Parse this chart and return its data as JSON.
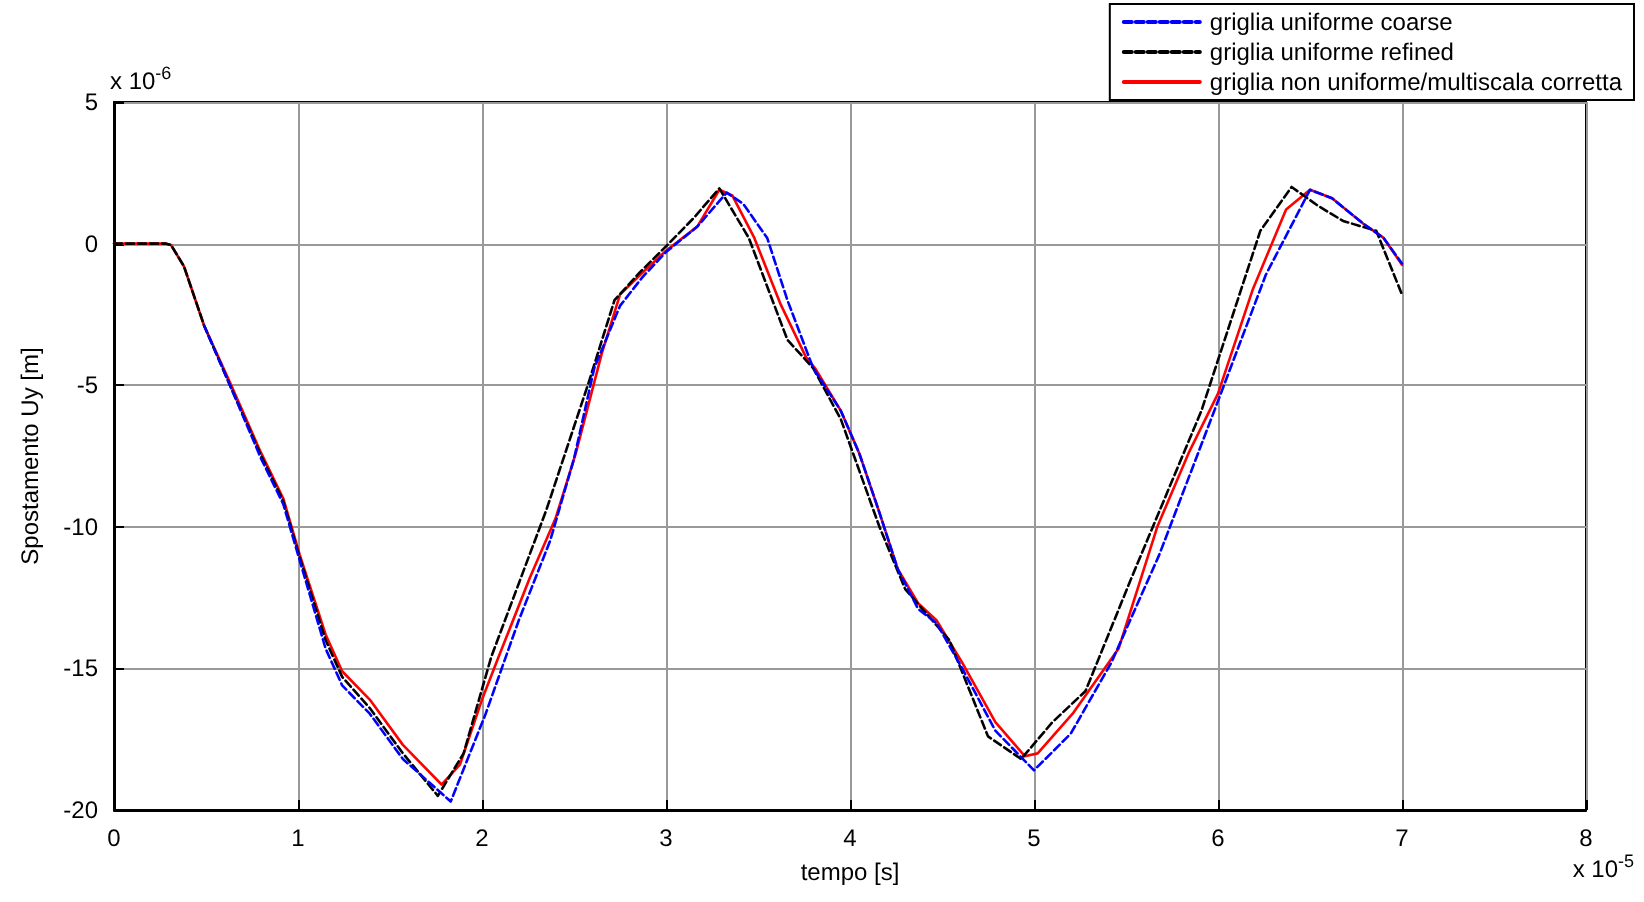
{
  "chart_data": {
    "type": "line",
    "xlabel": "tempo [s]",
    "ylabel": "Spostamento Uy [m]",
    "annotations": [
      "x 10$^{-6}$",
      "x 10$^{-5}$"
    ],
    "xlim": [
      0,
      8
    ],
    "xticks": [
      0,
      1,
      2,
      3,
      4,
      5,
      6,
      7,
      8
    ],
    "ylim": [
      -20,
      5
    ],
    "yticks": [
      -20,
      -15,
      -10,
      -5,
      0,
      5
    ],
    "grid": true,
    "legend": "top right",
    "marker": "none",
    "series": [
      {
        "name": "griglia uniforme coarse",
        "color": "#0000ff",
        "line_style": "dashed",
        "x": [
          0.49,
          0.63,
          0.8,
          0.92,
          1.01,
          1.15,
          1.24,
          1.39,
          1.57,
          1.83,
          2.02,
          2.2,
          2.37,
          2.5,
          2.61,
          2.75,
          2.87,
          3.0,
          3.17,
          3.33,
          3.42,
          3.55,
          3.66,
          3.8,
          3.95,
          4.05,
          4.16,
          4.26,
          4.37,
          4.47,
          4.61,
          4.79,
          5.0,
          5.2,
          5.42,
          5.68,
          5.98,
          6.26,
          6.5,
          6.62,
          6.79,
          6.9,
          7.0
        ],
        "values": [
          -2.9,
          -5.0,
          -7.6,
          -9.2,
          -11.2,
          -14.3,
          -15.6,
          -16.6,
          -18.2,
          -19.7,
          -16.6,
          -13.3,
          -10.5,
          -7.6,
          -4.4,
          -2.2,
          -1.2,
          -0.3,
          0.6,
          1.8,
          1.4,
          0.2,
          -2.0,
          -4.4,
          -5.9,
          -7.4,
          -9.5,
          -11.5,
          -12.9,
          -13.4,
          -15.0,
          -17.2,
          -18.6,
          -17.3,
          -14.8,
          -11.0,
          -5.9,
          -1.1,
          1.9,
          1.6,
          0.7,
          0.2,
          -0.7
        ]
      },
      {
        "name": "griglia uniforme refined",
        "color": "#000000",
        "line_style": "dashed",
        "x": [
          0,
          0.28,
          0.31,
          0.38,
          0.49,
          0.63,
          0.8,
          0.92,
          1.01,
          1.15,
          1.24,
          1.39,
          1.57,
          1.76,
          1.9,
          2.05,
          2.2,
          2.35,
          2.58,
          2.72,
          2.86,
          3.0,
          3.15,
          3.29,
          3.45,
          3.66,
          3.8,
          3.95,
          4.16,
          4.3,
          4.54,
          4.75,
          4.93,
          5.1,
          5.28,
          5.53,
          5.91,
          6.23,
          6.4,
          6.54,
          6.68,
          6.86,
          7.0
        ],
        "values": [
          0,
          0,
          -0.05,
          -0.8,
          -2.9,
          -5.0,
          -7.5,
          -9.1,
          -11.1,
          -14.0,
          -15.3,
          -16.4,
          -18.0,
          -19.5,
          -18.0,
          -14.6,
          -12.0,
          -9.4,
          -4.9,
          -2.0,
          -1.0,
          -0.1,
          0.9,
          1.95,
          0.2,
          -3.4,
          -4.4,
          -6.2,
          -10.0,
          -12.2,
          -14.0,
          -17.4,
          -18.2,
          -16.9,
          -15.8,
          -11.8,
          -5.9,
          0.45,
          2.0,
          1.35,
          0.8,
          0.45,
          -1.8
        ]
      },
      {
        "name": "griglia non uniforme/multiscala corretta",
        "color": "#ff0000",
        "line_style": "solid",
        "x": [
          0,
          0.28,
          0.31,
          0.38,
          0.49,
          0.63,
          0.8,
          0.92,
          1.01,
          1.15,
          1.24,
          1.39,
          1.57,
          1.78,
          1.88,
          2.0,
          2.09,
          2.26,
          2.4,
          2.51,
          2.65,
          2.75,
          2.86,
          3.0,
          3.17,
          3.29,
          3.36,
          3.48,
          3.62,
          3.76,
          3.81,
          3.95,
          4.05,
          4.16,
          4.26,
          4.37,
          4.47,
          4.61,
          4.79,
          4.95,
          5.02,
          5.21,
          5.46,
          5.67,
          5.84,
          6.0,
          6.19,
          6.37,
          6.5,
          6.62,
          6.79,
          6.9,
          7.0
        ],
        "values": [
          0,
          0,
          -0.05,
          -0.8,
          -2.9,
          -4.9,
          -7.4,
          -9.0,
          -11.0,
          -13.8,
          -15.1,
          -16.1,
          -17.7,
          -19.1,
          -18.4,
          -16.1,
          -14.6,
          -11.8,
          -9.7,
          -7.4,
          -3.9,
          -1.8,
          -1.1,
          -0.25,
          0.6,
          1.9,
          1.7,
          0.2,
          -2.1,
          -4.0,
          -4.4,
          -5.9,
          -7.4,
          -9.5,
          -11.5,
          -12.7,
          -13.3,
          -14.8,
          -16.9,
          -18.1,
          -18.0,
          -16.6,
          -14.3,
          -10.0,
          -7.4,
          -5.3,
          -1.6,
          1.2,
          1.9,
          1.6,
          0.7,
          0.2,
          -0.75
        ]
      }
    ]
  }
}
